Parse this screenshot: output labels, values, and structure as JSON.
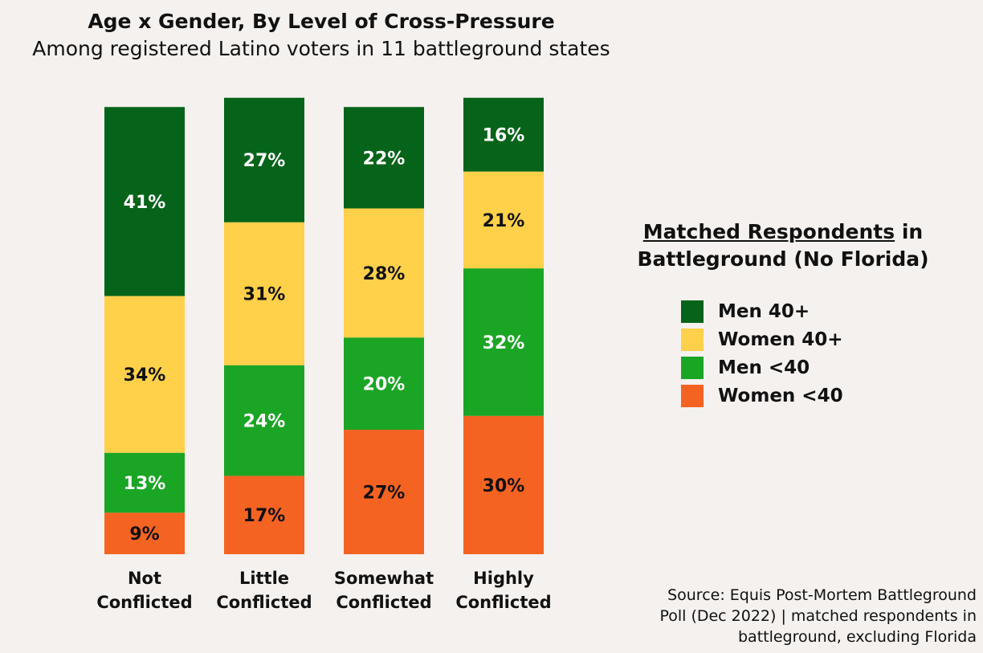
{
  "chart_data": {
    "type": "bar",
    "stacked": true,
    "title": "Age x Gender, By Level of Cross-Pressure",
    "subtitle": "Among registered Latino voters in 11 battleground states",
    "categories": [
      [
        "Not",
        "Conflicted"
      ],
      [
        "Little",
        "Conflicted"
      ],
      [
        "Somewhat",
        "Conflicted"
      ],
      [
        "Highly",
        "Conflicted"
      ]
    ],
    "series": [
      {
        "name": "Men 40+",
        "color": "#056419",
        "label_color": "#ffffff",
        "values": [
          41,
          27,
          22,
          16
        ],
        "labels": [
          "41%",
          "27%",
          "22%",
          "16%"
        ]
      },
      {
        "name": "Women 40+",
        "color": "#ffd04a",
        "label_color": "#111111",
        "values": [
          34,
          31,
          28,
          21
        ],
        "labels": [
          "34%",
          "31%",
          "28%",
          "21%"
        ]
      },
      {
        "name": "Men <40",
        "color": "#1ba525",
        "label_color": "#ffffff",
        "values": [
          13,
          24,
          20,
          32
        ],
        "labels": [
          "13%",
          "24%",
          "20%",
          "32%"
        ]
      },
      {
        "name": "Women <40",
        "color": "#f56322",
        "label_color": "#111111",
        "values": [
          9,
          17,
          27,
          30
        ],
        "labels": [
          "9%",
          "17%",
          "27%",
          "30%"
        ]
      }
    ],
    "legend": {
      "title_underlined": "Matched Respondents",
      "title_rest": "in",
      "title_line2": "Battleground (No Florida)",
      "position": "right"
    },
    "grid": false
  },
  "source": [
    "Source: Equis Post-Mortem Battleground",
    "Poll (Dec 2022) | matched respondents in",
    "battleground, excluding Florida"
  ]
}
